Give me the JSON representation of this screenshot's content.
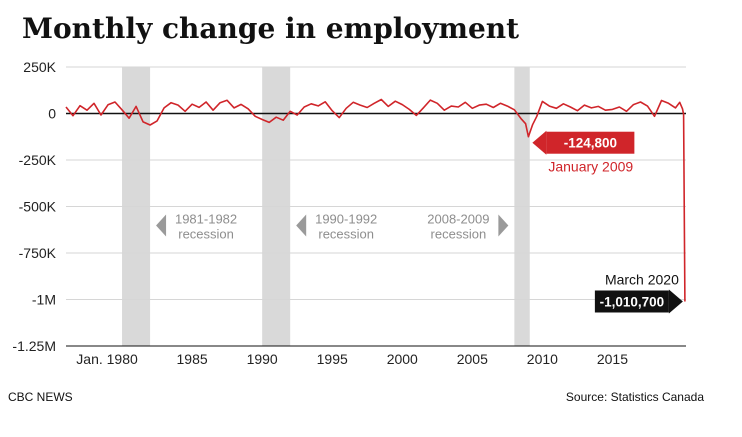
{
  "chart_data": {
    "type": "line",
    "title": "Monthly change in employment",
    "ylim": [
      -1250000,
      250000
    ],
    "y_ticks": [
      {
        "value": 250000,
        "label": "250K"
      },
      {
        "value": 0,
        "label": "0"
      },
      {
        "value": -250000,
        "label": "-250K"
      },
      {
        "value": -500000,
        "label": "-500K"
      },
      {
        "value": -750000,
        "label": "-750K"
      },
      {
        "value": -1000000,
        "label": "-1M"
      },
      {
        "value": -1250000,
        "label": "-1.25M"
      }
    ],
    "xlim": [
      1976.0,
      2020.25
    ],
    "x_ticks": [
      {
        "value": 1980,
        "label": "Jan. 1980"
      },
      {
        "value": 1985,
        "label": "1985"
      },
      {
        "value": 1990,
        "label": "1990"
      },
      {
        "value": 1995,
        "label": "1995"
      },
      {
        "value": 2000,
        "label": "2000"
      },
      {
        "value": 2005,
        "label": "2005"
      },
      {
        "value": 2010,
        "label": "2010"
      },
      {
        "value": 2015,
        "label": "2015"
      }
    ],
    "recessions": [
      {
        "start": 1980.0,
        "end": 1982.0,
        "label_lines": [
          "1981-1982",
          "recession"
        ]
      },
      {
        "start": 1990.0,
        "end": 1992.0,
        "label_lines": [
          "1990-1992",
          "recession"
        ]
      },
      {
        "start": 2008.0,
        "end": 2009.1,
        "label_lines": [
          "2008-2009",
          "recession"
        ]
      }
    ],
    "highlights": [
      {
        "x": 2009.0,
        "y": -124800,
        "value_label": "-124,800",
        "date_label": "January 2009"
      },
      {
        "x": 2020.17,
        "y": -1010700,
        "value_label": "-1,010,700",
        "date_label": "March 2020"
      }
    ],
    "series": [
      {
        "color": "#d0252a",
        "x": [
          1976.0,
          1976.5,
          1977.0,
          1977.5,
          1978.0,
          1978.5,
          1979.0,
          1979.5,
          1980.0,
          1980.5,
          1981.0,
          1981.5,
          1982.0,
          1982.5,
          1983.0,
          1983.5,
          1984.0,
          1984.5,
          1985.0,
          1985.5,
          1986.0,
          1986.5,
          1987.0,
          1987.5,
          1988.0,
          1988.5,
          1989.0,
          1989.5,
          1990.0,
          1990.5,
          1991.0,
          1991.5,
          1992.0,
          1992.5,
          1993.0,
          1993.5,
          1994.0,
          1994.5,
          1995.0,
          1995.5,
          1996.0,
          1996.5,
          1997.0,
          1997.5,
          1998.0,
          1998.5,
          1999.0,
          1999.5,
          2000.0,
          2000.5,
          2001.0,
          2001.5,
          2002.0,
          2002.5,
          2003.0,
          2003.5,
          2004.0,
          2004.5,
          2005.0,
          2005.5,
          2006.0,
          2006.5,
          2007.0,
          2007.5,
          2008.0,
          2008.5,
          2008.8,
          2009.0,
          2009.3,
          2009.6,
          2010.0,
          2010.5,
          2011.0,
          2011.5,
          2012.0,
          2012.5,
          2013.0,
          2013.5,
          2014.0,
          2014.5,
          2015.0,
          2015.5,
          2016.0,
          2016.5,
          2017.0,
          2017.5,
          2018.0,
          2018.5,
          2019.0,
          2019.5,
          2019.8,
          2020.0,
          2020.08,
          2020.17
        ],
        "values": [
          35000,
          -12000,
          42000,
          18000,
          55000,
          -8000,
          47000,
          62000,
          20000,
          -25000,
          38000,
          -45000,
          -62000,
          -40000,
          30000,
          58000,
          45000,
          12000,
          50000,
          33000,
          62000,
          18000,
          58000,
          71000,
          30000,
          49000,
          25000,
          -15000,
          -32000,
          -48000,
          -20000,
          -36000,
          12000,
          -8000,
          35000,
          52000,
          41000,
          63000,
          15000,
          -22000,
          28000,
          60000,
          45000,
          32000,
          55000,
          75000,
          38000,
          66000,
          48000,
          22000,
          -10000,
          30000,
          72000,
          55000,
          18000,
          40000,
          35000,
          60000,
          28000,
          45000,
          50000,
          32000,
          55000,
          40000,
          20000,
          -30000,
          -55000,
          -124800,
          -60000,
          -15000,
          65000,
          40000,
          28000,
          52000,
          35000,
          15000,
          45000,
          30000,
          38000,
          18000,
          22000,
          35000,
          12000,
          48000,
          62000,
          40000,
          -15000,
          70000,
          55000,
          30000,
          60000,
          25000,
          -5000,
          -1010700
        ]
      }
    ]
  },
  "footer": {
    "left": "CBC NEWS",
    "right": "Source: Statistics Canada"
  }
}
